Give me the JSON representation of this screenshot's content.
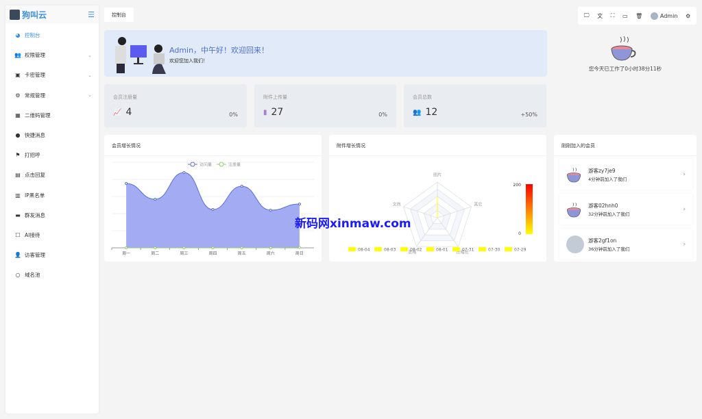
{
  "brand": {
    "name": "狗叫云"
  },
  "sidebar": {
    "items": [
      {
        "label": "控制台",
        "icon": "dashboard-icon",
        "active": true
      },
      {
        "label": "权限管理",
        "icon": "users-icon",
        "expandable": true
      },
      {
        "label": "卡密管理",
        "icon": "id-card-icon",
        "expandable": true
      },
      {
        "label": "常规管理",
        "icon": "cogs-icon",
        "expandable": true
      },
      {
        "label": "二维码管理",
        "icon": "qrcode-icon"
      },
      {
        "label": "快捷消息",
        "icon": "bulb-icon"
      },
      {
        "label": "打招呼",
        "icon": "flag-icon"
      },
      {
        "label": "点击回复",
        "icon": "clipboard-icon"
      },
      {
        "label": "IP黑名单",
        "icon": "clipboard-lock-icon"
      },
      {
        "label": "群发消息",
        "icon": "message-icon"
      },
      {
        "label": "AI接待",
        "icon": "cup-icon"
      },
      {
        "label": "访客管理",
        "icon": "user-icon"
      },
      {
        "label": "域名池",
        "icon": "circle-icon"
      }
    ]
  },
  "tab": {
    "label": "控制台"
  },
  "toolbar": {
    "user": "Admin"
  },
  "banner": {
    "greeting": "Admin，中午好！欢迎回来！",
    "subtitle": "欢迎您加入我们！"
  },
  "stats": [
    {
      "title": "会员注册量",
      "value": "4",
      "percent": "0%",
      "icon": "line-chart-icon",
      "color": "#8a8fe8"
    },
    {
      "title": "附件上传量",
      "value": "27",
      "percent": "0%",
      "icon": "file-icon",
      "color": "#a77be0"
    },
    {
      "title": "会员总数",
      "value": "12",
      "percent": "+50%",
      "icon": "users-icon",
      "color": "#6aa3b5"
    }
  ],
  "worktime": "您今天已工作了0小时38分11秒",
  "members_panel": {
    "title": "刚刚加入的会员",
    "items": [
      {
        "name": "游客zy7je9",
        "time": "4分钟前加入了我们",
        "avatar": "teacup"
      },
      {
        "name": "游客02hnh0",
        "time": "32分钟前加入了我们",
        "avatar": "teacup"
      },
      {
        "name": "游客2gf1on",
        "time": "36分钟前加入了我们",
        "avatar": "default"
      }
    ]
  },
  "watermark": "新码网xinmaw.com",
  "chart_data": [
    {
      "type": "area",
      "title": "会员增长情况",
      "categories": [
        "周一",
        "周二",
        "周三",
        "周四",
        "周五",
        "周六",
        "周日"
      ],
      "series": [
        {
          "name": "访问量",
          "values": [
            188,
            142,
            220,
            112,
            180,
            110,
            128
          ],
          "color": "#5b6fd6"
        },
        {
          "name": "注册量",
          "values": [
            0,
            0,
            0,
            0,
            0,
            0,
            1
          ],
          "color": "#91cc75"
        }
      ],
      "ylim": [
        0,
        250
      ],
      "grid": true,
      "legend": "top"
    },
    {
      "type": "radar",
      "title": "附件增长情况",
      "indicators": [
        "图片",
        "其它",
        "压缩包",
        "表格",
        "文档"
      ],
      "series": [
        {
          "name": "08-04",
          "values": [
            120,
            0,
            0,
            0,
            0
          ]
        },
        {
          "name": "08-03",
          "values": [
            0,
            0,
            0,
            0,
            0
          ]
        },
        {
          "name": "08-02",
          "values": [
            0,
            0,
            0,
            0,
            0
          ]
        },
        {
          "name": "08-01",
          "values": [
            0,
            0,
            0,
            0,
            0
          ]
        },
        {
          "name": "07-31",
          "values": [
            0,
            0,
            0,
            0,
            0
          ]
        },
        {
          "name": "07-30",
          "values": [
            0,
            0,
            0,
            0,
            0
          ]
        },
        {
          "name": "07-29",
          "values": [
            0,
            0,
            0,
            0,
            0
          ]
        }
      ],
      "max": 200,
      "visual_map": {
        "min": "0",
        "max": "200",
        "colors": [
          "#ffff00",
          "#ff0000"
        ]
      },
      "legend": "bottom",
      "series_color": "#ffff00"
    }
  ]
}
